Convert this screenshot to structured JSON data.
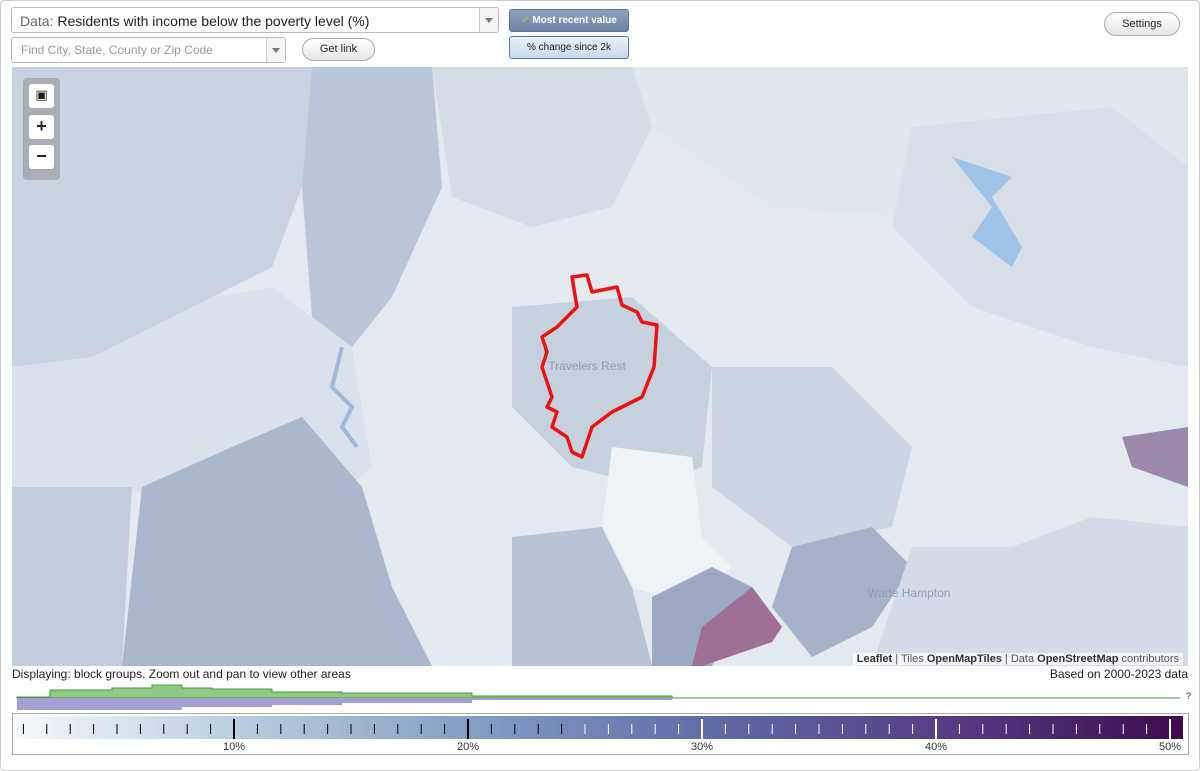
{
  "controls": {
    "data_label": "Data:",
    "data_value": "Residents with income below the poverty level (%)",
    "search_placeholder": "Find City, State, County or Zip Code",
    "get_link": "Get link",
    "most_recent": "Most recent value",
    "pct_change": "% change since 2k",
    "settings": "Settings"
  },
  "map": {
    "labels": [
      "Travelers Rest",
      "Wade Hampton"
    ],
    "attribution": {
      "leaflet": "Leaflet",
      "tiles_label": "Tiles",
      "tiles": "OpenMapTiles",
      "data_label": "Data",
      "data": "OpenStreetMap",
      "contributors": "contributors"
    }
  },
  "footer": {
    "displaying": "Displaying: block groups. Zoom out and pan to view other areas",
    "based_on": "Based on 2000-2023 data"
  },
  "legend": {
    "ticks": [
      "10%",
      "20%",
      "30%",
      "40%",
      "50%"
    ],
    "unknown": "?"
  }
}
